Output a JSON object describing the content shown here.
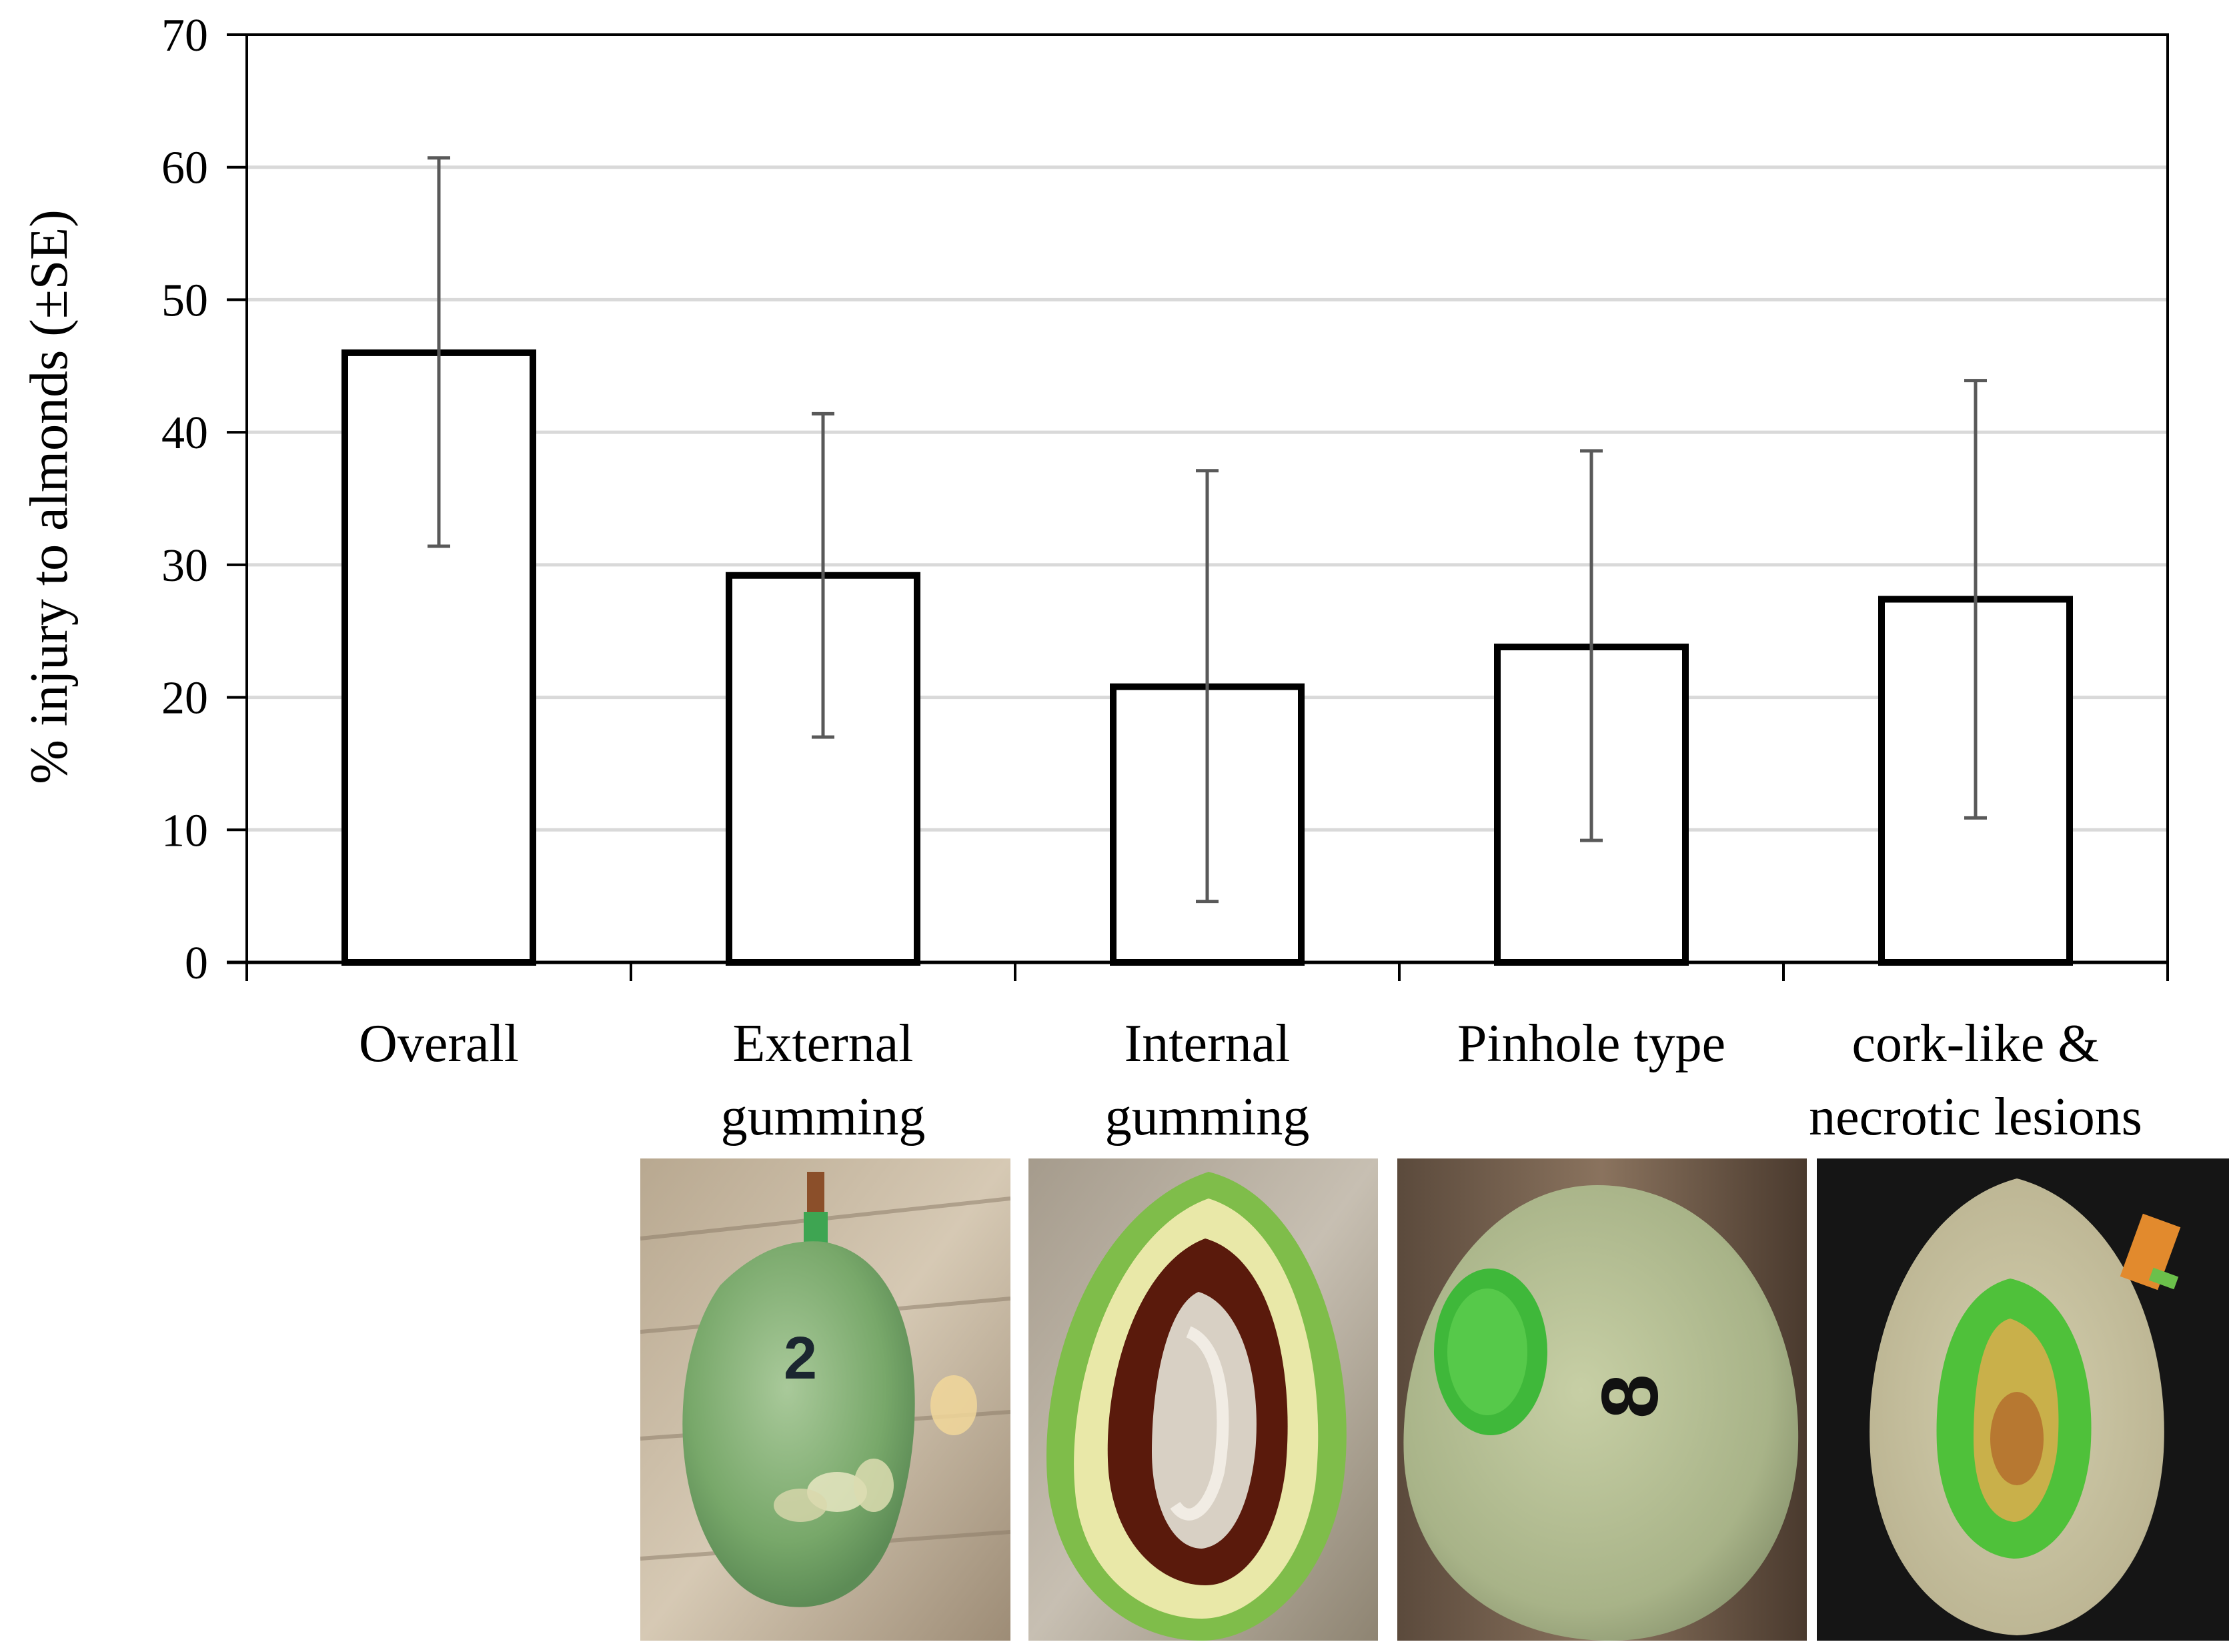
{
  "chart_data": {
    "type": "bar",
    "title": "",
    "xlabel": "",
    "ylabel": "% injury to almonds (±SE)",
    "ylim": [
      0,
      70
    ],
    "yticks": [
      0,
      10,
      20,
      30,
      40,
      50,
      60,
      70
    ],
    "grid": true,
    "categories": [
      [
        "Overall"
      ],
      [
        "External",
        "gumming"
      ],
      [
        "Internal",
        "gumming"
      ],
      [
        "Pinhole type"
      ],
      [
        "cork-like &",
        "necrotic lesions"
      ]
    ],
    "values": [
      46,
      29.2,
      20.8,
      23.8,
      27.4
    ],
    "error_upper": [
      60.7,
      41.4,
      37.1,
      38.6,
      43.9
    ],
    "error_lower": [
      31.4,
      17.0,
      4.6,
      9.2,
      10.9
    ]
  },
  "photos": [
    {
      "name": "external-gumming-photo",
      "label": "2"
    },
    {
      "name": "internal-gumming-photo"
    },
    {
      "name": "pinhole-type-photo",
      "label": "8"
    },
    {
      "name": "necrotic-lesions-photo"
    }
  ],
  "colors": {
    "bar_fill": "#ffffff",
    "bar_stroke": "#000000",
    "grid": "#d9d9d9",
    "error_bar": "#595959"
  }
}
